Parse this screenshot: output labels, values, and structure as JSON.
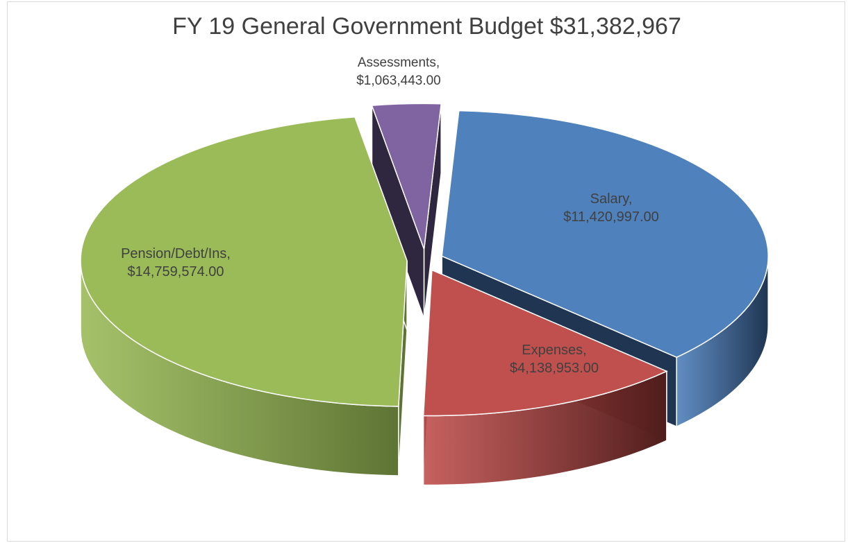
{
  "chart_data": {
    "type": "pie",
    "title": "FY 19 General Government Budget $31,382,967",
    "slices": [
      {
        "category": "Salary",
        "value": 11420997,
        "label_name": "Salary,",
        "label_value": "$11,420,997.00",
        "color": "#4f81bd",
        "side_color": "#1f3552"
      },
      {
        "category": "Expenses",
        "value": 4138953,
        "label_name": "Expenses,",
        "label_value": "$4,138,953.00",
        "color": "#c0504d",
        "side_color": "#4f1d1c"
      },
      {
        "category": "Pension/Debt/Ins",
        "value": 14759574,
        "label_name": "Pension/Debt/Ins,",
        "label_value": "$14,759,574.00",
        "color": "#9bbb59",
        "side_color": "#5e7434"
      },
      {
        "category": "Assessments",
        "value": 1063443,
        "label_name": "Assessments,",
        "label_value": "$1,063,443.00",
        "color": "#8064a2",
        "side_color": "#2f2640"
      }
    ],
    "legend": "none",
    "exploded": true,
    "style": "3d"
  }
}
